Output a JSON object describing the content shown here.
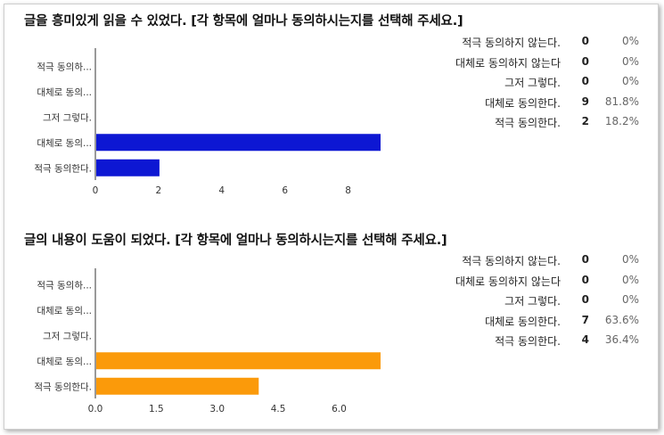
{
  "questions": [
    {
      "title": "글을 흥미있게 읽을 수 있었다. [각 항목에 얼마나 동의하시는지를 선택해 주세요.]",
      "summary": [
        {
          "label": "적극 동의하지 않는다.",
          "count": "0",
          "percent": "0%"
        },
        {
          "label": "대체로 동의하지 않는다",
          "count": "0",
          "percent": "0%"
        },
        {
          "label": "그저 그렇다.",
          "count": "0",
          "percent": "0%"
        },
        {
          "label": "대체로 동의한다.",
          "count": "9",
          "percent": "81.8%"
        },
        {
          "label": "적극 동의한다.",
          "count": "2",
          "percent": "18.2%"
        }
      ]
    },
    {
      "title": "글의 내용이 도움이 되었다. [각 항목에 얼마나 동의하시는지를 선택해 주세요.]",
      "summary": [
        {
          "label": "적극 동의하지 않는다.",
          "count": "0",
          "percent": "0%"
        },
        {
          "label": "대체로 동의하지 않는다",
          "count": "0",
          "percent": "0%"
        },
        {
          "label": "그저 그렇다.",
          "count": "0",
          "percent": "0%"
        },
        {
          "label": "대체로 동의한다.",
          "count": "7",
          "percent": "63.6%"
        },
        {
          "label": "적극 동의한다.",
          "count": "4",
          "percent": "36.4%"
        }
      ]
    }
  ],
  "chart_data": [
    {
      "type": "bar",
      "orientation": "horizontal",
      "categories": [
        "적극 동의하...",
        "대체로 동의...",
        "그저 그렇다.",
        "대체로 동의...",
        "적극 동의한다."
      ],
      "values": [
        0,
        0,
        0,
        9,
        2
      ],
      "xlim": [
        0,
        9
      ],
      "ticks": [
        0,
        2,
        4,
        6,
        8
      ],
      "tick_labels": [
        "0",
        "2",
        "4",
        "6",
        "8"
      ],
      "color": "#0d17d3"
    },
    {
      "type": "bar",
      "orientation": "horizontal",
      "categories": [
        "적극 동의하...",
        "대체로 동의...",
        "그저 그렇다.",
        "대체로 동의...",
        "적극 동의한다."
      ],
      "values": [
        0,
        0,
        0,
        7,
        4
      ],
      "xlim": [
        0,
        7
      ],
      "ticks": [
        0,
        1.5,
        3,
        4.5,
        6
      ],
      "tick_labels": [
        "0.0",
        "1.5",
        "3.0",
        "4.5",
        "6.0"
      ],
      "color": "#fb9a0a"
    }
  ]
}
